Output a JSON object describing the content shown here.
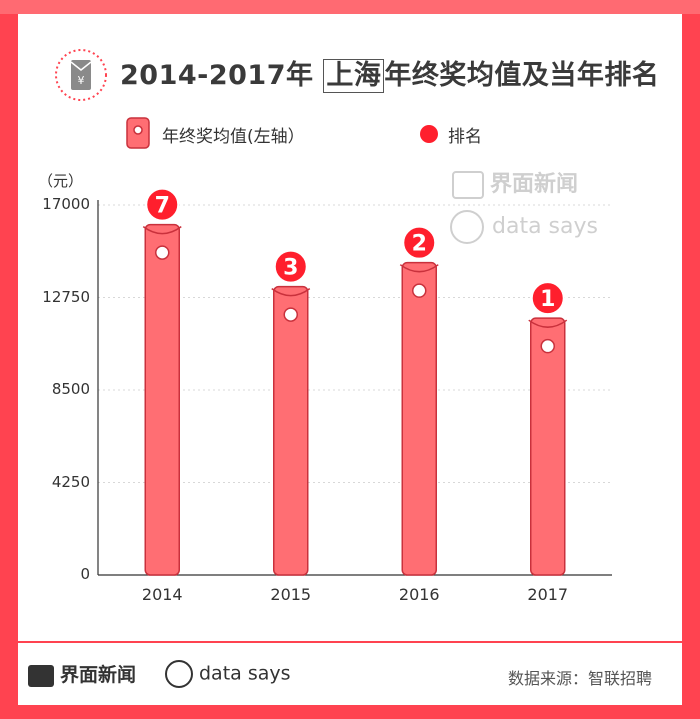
{
  "title_prefix": "2014-2017年 ",
  "title_boxed": "上海",
  "title_suffix": "年终奖均值及当年排名",
  "legend": {
    "bar_label": "年终奖均值(左轴）",
    "rank_label": "排名"
  },
  "y_unit": "（元）",
  "watermark": {
    "brand": "界面新闻",
    "tagline": "data says"
  },
  "footer": {
    "brand": "界面新闻",
    "tagline": "data says",
    "source": "数据来源：智联招聘"
  },
  "colors": {
    "frame": "#ff4350",
    "bar": "#ff6e73",
    "bar_stroke": "#c9313c",
    "rank": "#ff1f2d"
  },
  "chart_data": {
    "type": "bar",
    "categories": [
      "2014",
      "2015",
      "2016",
      "2017"
    ],
    "series": [
      {
        "name": "年终奖均值(左轴）",
        "values": [
          16100,
          13250,
          14350,
          11800
        ]
      },
      {
        "name": "排名",
        "values": [
          7,
          3,
          2,
          1
        ]
      }
    ],
    "y_ticks": [
      "0",
      "4250",
      "8500",
      "12750",
      "17000"
    ],
    "ylim": [
      0,
      17000
    ],
    "grid": true,
    "legend_position": "top"
  }
}
